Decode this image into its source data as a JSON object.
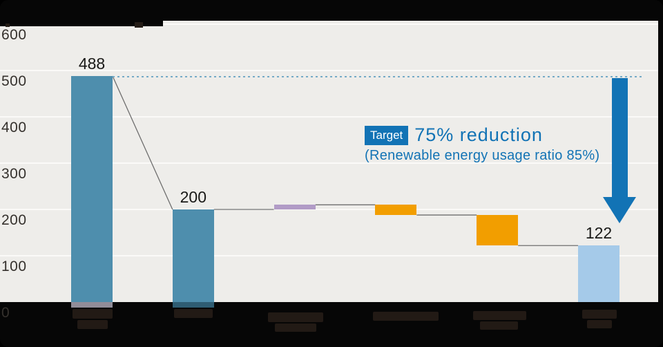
{
  "chart_data": {
    "type": "bar",
    "subtype": "waterfall",
    "title": "",
    "ylim": [
      0,
      600
    ],
    "yticks": [
      600,
      500,
      400,
      300,
      200,
      100,
      0
    ],
    "grid": true,
    "bars": [
      {
        "value_label": "488",
        "start": 0,
        "end": 488,
        "color": "teal",
        "role": "total"
      },
      {
        "value_label": "200",
        "start": 0,
        "end": 200,
        "color": "teal",
        "role": "total"
      },
      {
        "value_label": "",
        "start": 200,
        "end": 210,
        "color": "purple",
        "role": "increase"
      },
      {
        "value_label": "",
        "start": 210,
        "end": 188,
        "color": "orange",
        "role": "decrease"
      },
      {
        "value_label": "",
        "start": 188,
        "end": 122,
        "color": "orange",
        "role": "decrease"
      },
      {
        "value_label": "122",
        "start": 0,
        "end": 122,
        "color": "lightblue",
        "role": "total"
      }
    ],
    "reference_line": {
      "level": 488,
      "style": "dotted"
    },
    "arrow": {
      "from_level": 488,
      "to_level": 170
    },
    "annotation": {
      "badge": "Target",
      "headline": "75% reduction",
      "subline": "(Renewable energy usage ratio 85%)"
    }
  },
  "colors": {
    "teal": "#4e8ead",
    "orange": "#f29e00",
    "purple": "#b19bc6",
    "lightblue": "#a5cae9",
    "accent": "#1273b5",
    "plot_bg": "#eeedea",
    "grid": "#fbfaf8",
    "connector": "#6e6e6e",
    "dotted_line": "#74aac6",
    "background": "#060606",
    "tick_text": "#35312d",
    "value_text": "#191917"
  }
}
